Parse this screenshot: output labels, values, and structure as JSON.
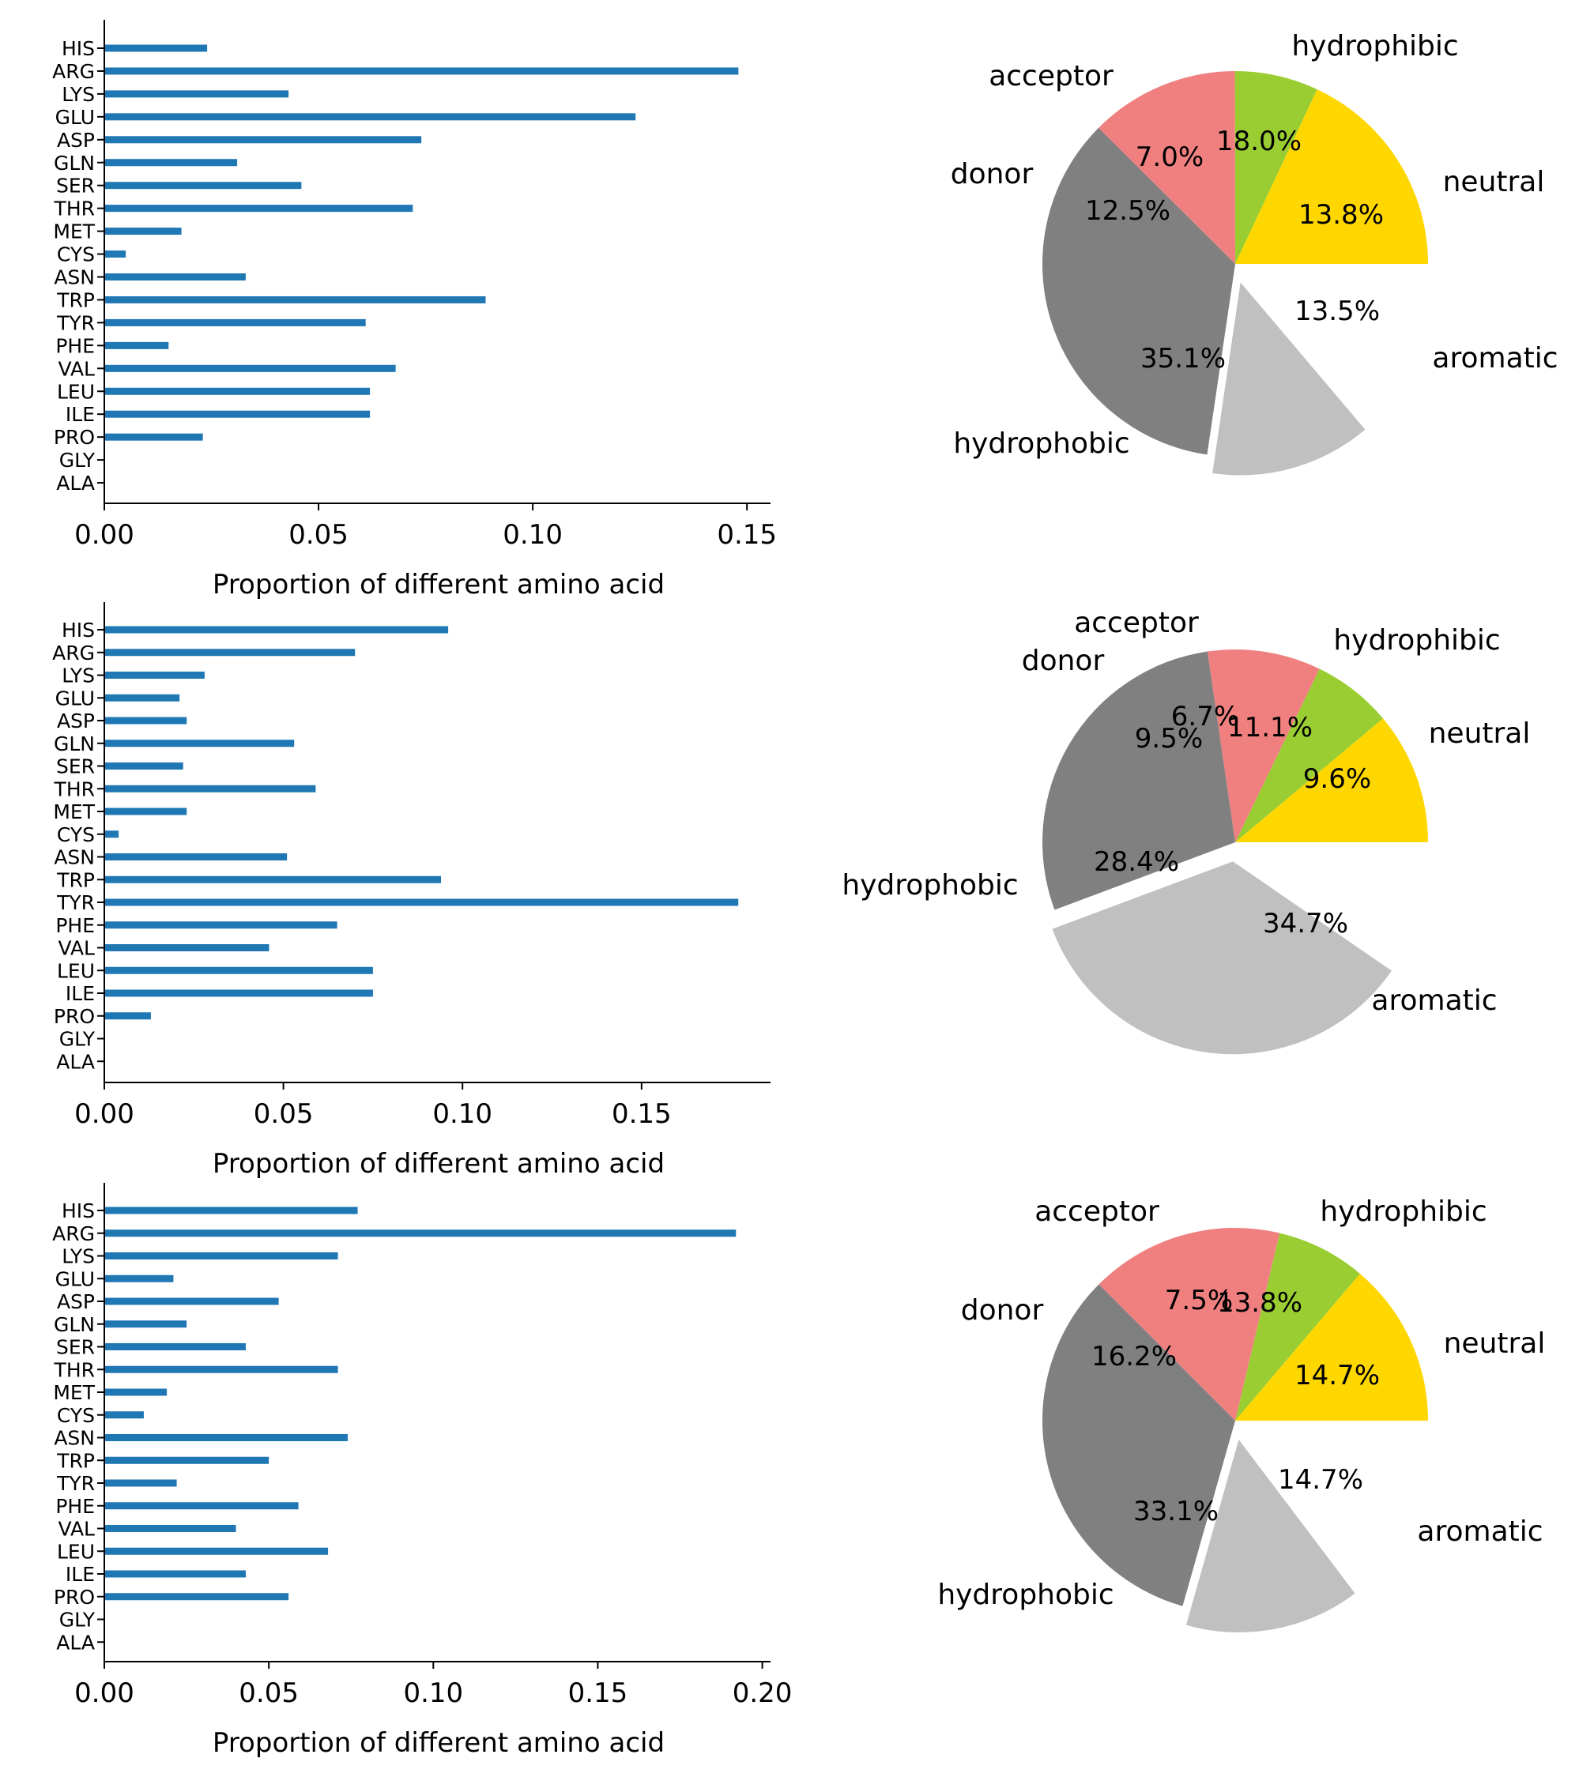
{
  "chart_data": [
    {
      "type": "bar",
      "orientation": "horizontal",
      "categories": [
        "HIS",
        "ARG",
        "LYS",
        "GLU",
        "ASP",
        "GLN",
        "SER",
        "THR",
        "MET",
        "CYS",
        "ASN",
        "TRP",
        "TYR",
        "PHE",
        "VAL",
        "LEU",
        "ILE",
        "PRO",
        "GLY",
        "ALA"
      ],
      "values": [
        0.024,
        0.148,
        0.043,
        0.124,
        0.074,
        0.031,
        0.046,
        0.072,
        0.018,
        0.005,
        0.033,
        0.089,
        0.061,
        0.015,
        0.068,
        0.062,
        0.062,
        0.023,
        0.0,
        0.0
      ],
      "xlabel": "Proportion of different amino acid",
      "xticks": [
        0.0,
        0.05,
        0.1,
        0.15
      ],
      "xtick_labels": [
        "0.00",
        "0.05",
        "0.10",
        "0.15"
      ],
      "xlim": [
        0,
        0.1555
      ],
      "color": "#1f77b4"
    },
    {
      "type": "pie",
      "labels": [
        "hydrophibic",
        "acceptor",
        "donor",
        "hydrophobic",
        "aromatic",
        "neutral"
      ],
      "values": [
        18.0,
        7.0,
        12.5,
        35.1,
        13.5,
        13.8
      ],
      "pct_labels": [
        "18.0%",
        "7.0%",
        "12.5%",
        "35.1%",
        "13.5%",
        "13.8%"
      ],
      "colors": [
        "#ffd700",
        "#9acd32",
        "#f08080",
        "#808080",
        "#c0c0c0",
        "#ffffff"
      ],
      "explode": [
        0,
        0,
        0,
        0,
        0.1,
        0
      ]
    },
    {
      "type": "bar",
      "orientation": "horizontal",
      "categories": [
        "HIS",
        "ARG",
        "LYS",
        "GLU",
        "ASP",
        "GLN",
        "SER",
        "THR",
        "MET",
        "CYS",
        "ASN",
        "TRP",
        "TYR",
        "PHE",
        "VAL",
        "LEU",
        "ILE",
        "PRO",
        "GLY",
        "ALA"
      ],
      "values": [
        0.096,
        0.07,
        0.028,
        0.021,
        0.023,
        0.053,
        0.022,
        0.059,
        0.023,
        0.004,
        0.051,
        0.094,
        0.177,
        0.065,
        0.046,
        0.075,
        0.075,
        0.013,
        0.0,
        0.0
      ],
      "xlabel": "Proportion of different amino acid",
      "xticks": [
        0.0,
        0.05,
        0.1,
        0.15
      ],
      "xtick_labels": [
        "0.00",
        "0.05",
        "0.10",
        "0.15"
      ],
      "xlim": [
        0,
        0.186
      ],
      "color": "#1f77b4"
    },
    {
      "type": "pie",
      "labels": [
        "hydrophibic",
        "acceptor",
        "donor",
        "hydrophobic",
        "aromatic",
        "neutral"
      ],
      "values": [
        11.1,
        6.7,
        9.5,
        28.4,
        34.7,
        9.6
      ],
      "pct_labels": [
        "11.1%",
        "6.7%",
        "9.5%",
        "28.4%",
        "34.7%",
        "9.6%"
      ],
      "colors": [
        "#ffd700",
        "#9acd32",
        "#f08080",
        "#808080",
        "#c0c0c0",
        "#ffffff"
      ],
      "explode": [
        0,
        0,
        0,
        0,
        0.1,
        0
      ]
    },
    {
      "type": "bar",
      "orientation": "horizontal",
      "categories": [
        "HIS",
        "ARG",
        "LYS",
        "GLU",
        "ASP",
        "GLN",
        "SER",
        "THR",
        "MET",
        "CYS",
        "ASN",
        "TRP",
        "TYR",
        "PHE",
        "VAL",
        "LEU",
        "ILE",
        "PRO",
        "GLY",
        "ALA"
      ],
      "values": [
        0.077,
        0.192,
        0.071,
        0.021,
        0.053,
        0.025,
        0.043,
        0.071,
        0.019,
        0.012,
        0.074,
        0.05,
        0.022,
        0.059,
        0.04,
        0.068,
        0.043,
        0.056,
        0.0,
        0.0
      ],
      "xlabel": "Proportion of different amino acid",
      "xticks": [
        0.0,
        0.05,
        0.1,
        0.15,
        0.2
      ],
      "xtick_labels": [
        "0.00",
        "0.05",
        "0.10",
        "0.15",
        "0.20"
      ],
      "xlim": [
        0,
        0.2025
      ],
      "color": "#1f77b4"
    },
    {
      "type": "pie",
      "labels": [
        "hydrophibic",
        "acceptor",
        "donor",
        "hydrophobic",
        "aromatic",
        "neutral"
      ],
      "values": [
        13.8,
        7.5,
        16.2,
        33.1,
        14.7,
        14.7
      ],
      "pct_labels": [
        "13.8%",
        "7.5%",
        "16.2%",
        "33.1%",
        "14.7%",
        "14.7%"
      ],
      "colors": [
        "#ffd700",
        "#9acd32",
        "#f08080",
        "#808080",
        "#c0c0c0",
        "#ffffff"
      ],
      "explode": [
        0,
        0,
        0,
        0,
        0.1,
        0
      ]
    }
  ]
}
